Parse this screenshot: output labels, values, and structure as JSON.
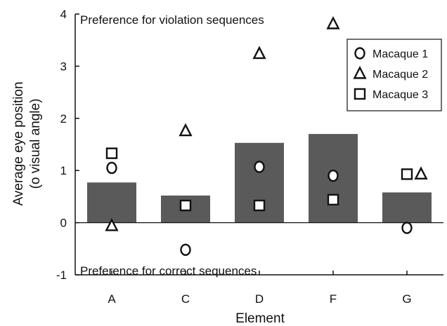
{
  "chart_data": {
    "type": "bar",
    "xlabel": "Element",
    "ylabel": "Average eye position",
    "ylabel_sub": "(o visual angle)",
    "categories": [
      "A",
      "C",
      "D",
      "F",
      "G"
    ],
    "ylim": [
      -1,
      4
    ],
    "yticks": [
      -1,
      0,
      1,
      2,
      3,
      4
    ],
    "bar_values": [
      0.77,
      0.52,
      1.53,
      1.7,
      0.58
    ],
    "bar_color": "#5a5a5a",
    "series": [
      {
        "name": "Macaque 1",
        "marker": "circle",
        "values": [
          1.05,
          -0.52,
          1.07,
          0.9,
          -0.1
        ]
      },
      {
        "name": "Macaque 2",
        "marker": "triangle",
        "values": [
          -0.06,
          1.76,
          3.24,
          3.81,
          0.93
        ]
      },
      {
        "name": "Macaque 3",
        "marker": "square",
        "values": [
          1.33,
          0.33,
          0.33,
          0.44,
          0.93
        ]
      }
    ],
    "annotations": {
      "top": "Preference for violation sequences",
      "bottom": "Preference for correct sequences"
    },
    "legend_position": "top-right",
    "grid": false
  }
}
